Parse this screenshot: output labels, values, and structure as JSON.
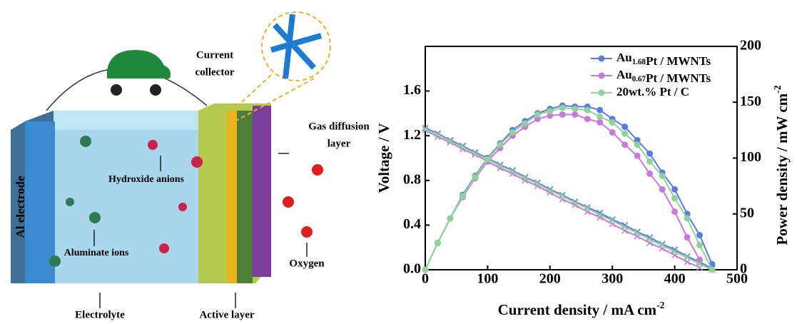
{
  "diagram": {
    "current_collector": [
      "Current",
      "collector"
    ],
    "gas_diffusion_layer": [
      "Gas diffusion",
      "layer"
    ],
    "hydroxide_anions": "Hydroxide anions",
    "al_electrode": "Al electrode",
    "aluminate_ions": "Aluminate ions",
    "electrolyte": "Electrolyte",
    "active_layer": "Active layer",
    "oxygen": "Oxygen"
  },
  "chart_data": {
    "type": "line",
    "xlabel": "Current density / mA cm-2",
    "ylabel": "Voltage / V",
    "y2label": "Power density / mW cm-2",
    "x": [
      0,
      20,
      40,
      60,
      80,
      100,
      120,
      140,
      160,
      180,
      200,
      220,
      240,
      260,
      280,
      300,
      320,
      340,
      360,
      380,
      400,
      420,
      440,
      460
    ],
    "xlim": [
      0,
      500
    ],
    "xticks": [
      0,
      100,
      200,
      300,
      400,
      500
    ],
    "ylim": [
      0,
      2.0
    ],
    "yticks": [
      {
        "value": 0,
        "label": "0.0"
      },
      {
        "value": 0.4,
        "label": "0.4"
      },
      {
        "value": 0.8,
        "label": "0.8"
      },
      {
        "value": 1.2,
        "label": "1.2"
      },
      {
        "value": 1.6,
        "label": "1.6"
      }
    ],
    "y2lim": [
      0,
      200
    ],
    "y2ticks": [
      0,
      50,
      100,
      150,
      200
    ],
    "series": [
      {
        "name": "Au1.68Pt / MWNTs",
        "color": "#5b7be0",
        "voltage": [
          1.27,
          1.22,
          1.16,
          1.11,
          1.05,
          1.0,
          0.94,
          0.89,
          0.83,
          0.78,
          0.72,
          0.67,
          0.61,
          0.56,
          0.51,
          0.45,
          0.4,
          0.34,
          0.29,
          0.23,
          0.18,
          0.12,
          0.07,
          0.01
        ],
        "power": [
          0,
          24,
          46,
          67,
          84,
          100,
          113,
          125,
          133,
          140,
          144,
          147,
          146,
          146,
          143,
          135,
          128,
          116,
          104,
          87,
          72,
          50,
          31,
          5
        ]
      },
      {
        "name": "Au0.67Pt / MWNTs",
        "color": "#c77ad8",
        "voltage": [
          1.25,
          1.19,
          1.14,
          1.08,
          1.03,
          0.97,
          0.91,
          0.86,
          0.8,
          0.75,
          0.69,
          0.63,
          0.58,
          0.52,
          0.47,
          0.41,
          0.35,
          0.3,
          0.24,
          0.19,
          0.13,
          0.07,
          0.02,
          null
        ],
        "power": [
          0,
          24,
          46,
          65,
          82,
          97,
          109,
          120,
          128,
          135,
          138,
          139,
          139,
          135,
          132,
          123,
          112,
          102,
          86,
          72,
          52,
          29,
          9,
          null
        ]
      },
      {
        "name": "20wt.% Pt / C",
        "color": "#8fd39a",
        "voltage": [
          1.26,
          1.21,
          1.15,
          1.1,
          1.04,
          0.99,
          0.93,
          0.88,
          0.82,
          0.77,
          0.71,
          0.66,
          0.6,
          0.55,
          0.49,
          0.44,
          0.38,
          0.33,
          0.27,
          0.22,
          0.16,
          0.11,
          0.05,
          0.0
        ],
        "power": [
          0,
          24,
          46,
          66,
          83,
          99,
          112,
          123,
          131,
          139,
          142,
          145,
          144,
          143,
          137,
          132,
          122,
          112,
          97,
          84,
          64,
          46,
          22,
          0
        ]
      }
    ]
  }
}
